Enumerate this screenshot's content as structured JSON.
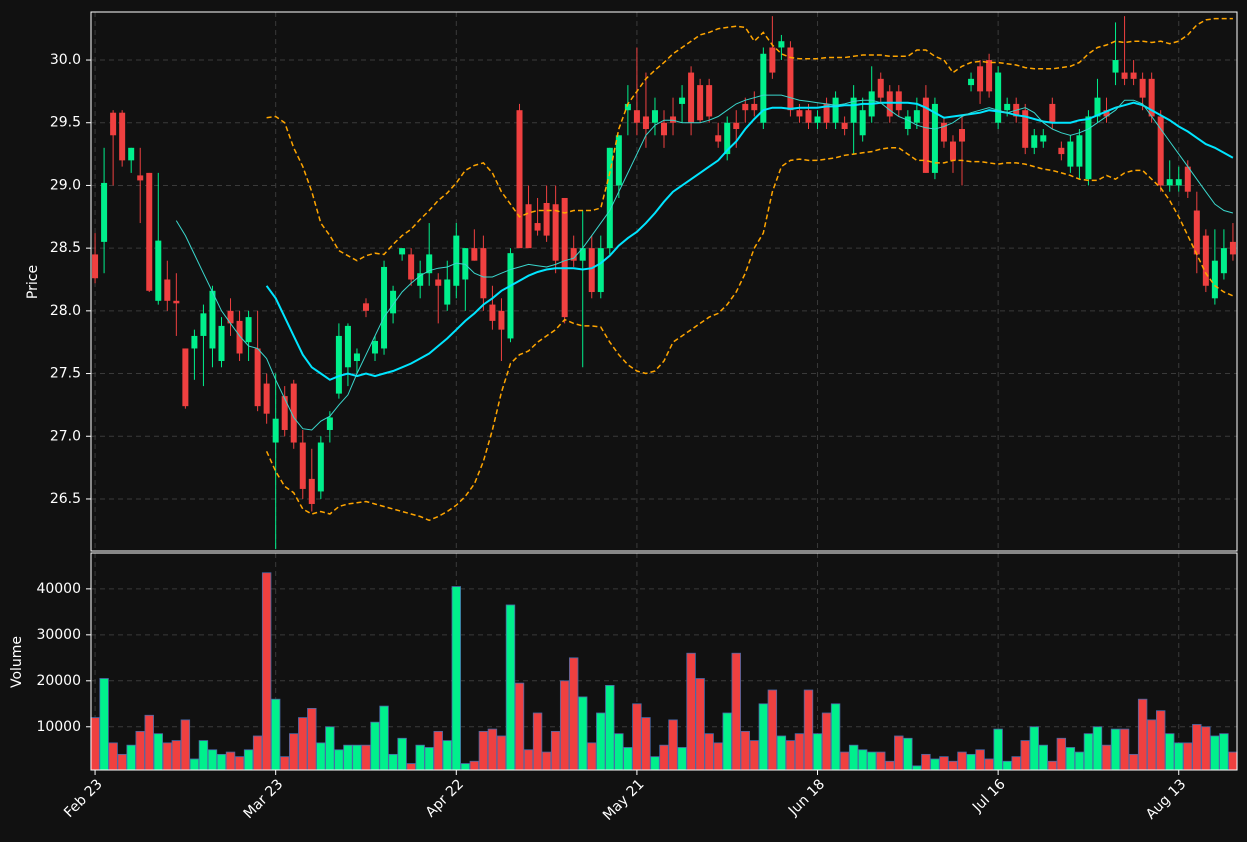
{
  "chart_data": {
    "type": "candlestick",
    "ylabel": "Price",
    "ylim": [
      26.085,
      30.383
    ],
    "yticks": [
      26.5,
      {
        "value": 27,
        "label": "27.0"
      },
      27.5,
      {
        "value": 28,
        "label": "28.0"
      },
      28.5,
      {
        "value": 29,
        "label": "29.0"
      },
      29.5,
      {
        "value": 30,
        "label": "30.0"
      }
    ],
    "grid": true,
    "up_color": "#00f08c",
    "down_color": "#ef4040",
    "categories": [
      "Feb 23",
      null,
      null,
      null,
      null,
      null,
      null,
      null,
      null,
      null,
      null,
      null,
      null,
      null,
      null,
      null,
      null,
      null,
      null,
      null,
      "Mar 23",
      null,
      null,
      null,
      null,
      null,
      null,
      null,
      null,
      null,
      null,
      null,
      null,
      null,
      null,
      null,
      null,
      null,
      null,
      null,
      "Apr 22",
      null,
      null,
      null,
      null,
      null,
      null,
      null,
      null,
      null,
      null,
      null,
      null,
      null,
      null,
      null,
      null,
      null,
      null,
      null,
      "May 21",
      null,
      null,
      null,
      null,
      null,
      null,
      null,
      null,
      null,
      null,
      null,
      null,
      null,
      null,
      null,
      null,
      null,
      null,
      null,
      "Jun 18",
      null,
      null,
      null,
      null,
      null,
      null,
      null,
      null,
      null,
      null,
      null,
      null,
      null,
      null,
      null,
      null,
      null,
      null,
      null,
      "Jul 16",
      null,
      null,
      null,
      null,
      null,
      null,
      null,
      null,
      null,
      null,
      null,
      null,
      null,
      null,
      null,
      null,
      null,
      null,
      null,
      "Aug 13",
      null,
      null,
      null,
      null,
      null,
      null
    ],
    "open": [
      28.45,
      28.55,
      29.58,
      29.58,
      29.2,
      29.08,
      29.1,
      28.08,
      28.25,
      28.08,
      27.7,
      27.7,
      27.8,
      27.7,
      27.6,
      28.0,
      27.92,
      27.75,
      27.7,
      27.42,
      26.95,
      27.32,
      27.42,
      26.95,
      26.66,
      26.56,
      27.05,
      27.34,
      27.55,
      27.6,
      28.06,
      27.66,
      27.7,
      27.98,
      28.45,
      28.45,
      28.2,
      28.3,
      28.25,
      28.05,
      28.2,
      28.25,
      28.5,
      28.5,
      28.05,
      28.0,
      27.78,
      29.6,
      28.85,
      28.7,
      28.86,
      28.85,
      28.9,
      28.5,
      28.4,
      28.5,
      28.15,
      28.5,
      29.0,
      29.6,
      29.6,
      29.55,
      29.5,
      29.5,
      29.55,
      29.65,
      29.9,
      29.8,
      29.8,
      29.4,
      29.25,
      29.5,
      29.65,
      29.65,
      29.5,
      30.1,
      30.1,
      30.1,
      29.6,
      29.6,
      29.5,
      29.65,
      29.5,
      29.5,
      29.5,
      29.4,
      29.55,
      29.85,
      29.75,
      29.75,
      29.45,
      29.5,
      29.7,
      29.1,
      29.5,
      29.35,
      29.45,
      29.8,
      29.95,
      30.0,
      29.5,
      29.6,
      29.65,
      29.6,
      29.3,
      29.35,
      29.65,
      29.3,
      29.15,
      29.15,
      29.05,
      29.55,
      29.6,
      29.9,
      29.9,
      29.9,
      29.85,
      29.85,
      29.55,
      29.0,
      29.0,
      29.15,
      28.8,
      28.6,
      28.1,
      28.3,
      28.55
    ],
    "high": [
      28.62,
      29.3,
      29.6,
      29.6,
      29.3,
      29.3,
      29.1,
      29.1,
      28.4,
      28.3,
      27.7,
      27.85,
      28.05,
      28.2,
      27.95,
      28.1,
      28.0,
      28.0,
      28.0,
      27.5,
      27.5,
      27.4,
      27.45,
      27.05,
      26.9,
      27.0,
      27.2,
      27.9,
      27.9,
      27.7,
      28.1,
      27.8,
      28.4,
      28.2,
      28.5,
      28.5,
      28.4,
      28.7,
      28.3,
      28.4,
      28.7,
      28.5,
      28.65,
      28.6,
      28.2,
      28.1,
      28.5,
      29.65,
      29.0,
      28.9,
      29.0,
      29.0,
      28.9,
      28.6,
      28.8,
      28.6,
      28.6,
      29.3,
      29.4,
      29.8,
      30.1,
      29.9,
      29.7,
      29.6,
      29.7,
      29.8,
      29.95,
      29.85,
      29.85,
      29.5,
      29.55,
      29.6,
      29.7,
      29.75,
      30.1,
      30.35,
      30.2,
      30.15,
      29.65,
      29.65,
      29.6,
      29.7,
      29.75,
      29.55,
      29.8,
      29.7,
      29.95,
      29.9,
      29.8,
      29.8,
      29.6,
      29.7,
      29.8,
      29.7,
      29.55,
      29.4,
      29.55,
      29.9,
      30.0,
      30.05,
      29.95,
      29.7,
      29.7,
      29.65,
      29.45,
      29.45,
      29.7,
      29.35,
      29.4,
      29.45,
      29.6,
      29.85,
      29.7,
      30.3,
      30.35,
      30.0,
      29.9,
      29.9,
      29.6,
      29.2,
      29.15,
      29.2,
      28.95,
      28.65,
      28.65,
      28.65,
      28.7
    ],
    "low": [
      28.22,
      28.3,
      29.0,
      29.15,
      29.1,
      28.7,
      28.15,
      28.05,
      28.0,
      27.8,
      27.22,
      27.45,
      27.4,
      27.55,
      27.55,
      27.8,
      27.6,
      27.6,
      27.2,
      27.1,
      26.1,
      27.0,
      26.9,
      26.5,
      26.4,
      26.5,
      26.95,
      27.3,
      27.4,
      27.5,
      27.95,
      27.6,
      27.65,
      27.9,
      28.4,
      28.2,
      28.1,
      28.2,
      27.9,
      28.0,
      28.1,
      28.0,
      28.4,
      28.0,
      27.85,
      27.6,
      27.75,
      28.5,
      28.5,
      28.6,
      28.55,
      28.3,
      27.9,
      28.35,
      27.55,
      28.1,
      28.1,
      28.45,
      28.9,
      29.4,
      29.4,
      29.3,
      29.4,
      29.3,
      29.4,
      29.5,
      29.4,
      29.5,
      29.5,
      29.3,
      29.2,
      29.3,
      29.5,
      29.55,
      29.45,
      29.85,
      30.0,
      29.55,
      29.5,
      29.45,
      29.45,
      29.45,
      29.45,
      29.4,
      29.25,
      29.35,
      29.5,
      29.65,
      29.5,
      29.55,
      29.4,
      29.45,
      29.1,
      29.05,
      29.3,
      29.1,
      29.0,
      29.75,
      29.65,
      29.7,
      29.45,
      29.55,
      29.5,
      29.25,
      29.25,
      29.3,
      29.45,
      29.2,
      29.1,
      29.05,
      29.0,
      29.5,
      29.5,
      29.8,
      29.8,
      29.8,
      29.6,
      29.5,
      28.95,
      28.95,
      28.95,
      28.9,
      28.3,
      28.15,
      28.05,
      28.25,
      28.4
    ],
    "close": [
      28.26,
      29.02,
      29.4,
      29.2,
      29.3,
      29.04,
      28.16,
      28.56,
      28.08,
      28.06,
      27.24,
      27.8,
      27.98,
      28.16,
      27.88,
      27.9,
      27.66,
      27.95,
      27.24,
      27.18,
      27.14,
      27.05,
      26.95,
      26.58,
      26.46,
      26.95,
      27.15,
      27.8,
      27.88,
      27.66,
      28.0,
      27.76,
      28.35,
      28.16,
      28.5,
      28.25,
      28.3,
      28.45,
      28.2,
      28.25,
      28.6,
      28.5,
      28.4,
      28.1,
      27.92,
      27.85,
      28.46,
      28.5,
      28.5,
      28.64,
      28.6,
      28.4,
      27.95,
      28.4,
      28.5,
      28.15,
      28.5,
      29.3,
      29.4,
      29.65,
      29.5,
      29.45,
      29.6,
      29.4,
      29.5,
      29.7,
      29.5,
      29.52,
      29.55,
      29.35,
      29.5,
      29.45,
      29.6,
      29.6,
      30.05,
      29.9,
      30.15,
      29.6,
      29.55,
      29.5,
      29.55,
      29.5,
      29.7,
      29.45,
      29.7,
      29.6,
      29.75,
      29.7,
      29.55,
      29.6,
      29.55,
      29.6,
      29.1,
      29.65,
      29.35,
      29.2,
      29.35,
      29.85,
      29.75,
      29.75,
      29.9,
      29.65,
      29.55,
      29.3,
      29.4,
      29.4,
      29.5,
      29.25,
      29.35,
      29.4,
      29.55,
      29.7,
      29.55,
      30.0,
      29.85,
      29.85,
      29.7,
      29.55,
      29.0,
      29.05,
      29.05,
      28.95,
      28.45,
      28.2,
      28.4,
      28.5,
      28.45
    ],
    "lines": [
      {
        "color": "#00e5ff",
        "width": 2,
        "dashed": false,
        "values": [
          null,
          null,
          null,
          null,
          null,
          null,
          null,
          null,
          null,
          null,
          null,
          null,
          null,
          null,
          null,
          null,
          null,
          null,
          null,
          28.2,
          28.1,
          27.95,
          27.8,
          27.65,
          27.55,
          27.5,
          27.45,
          27.48,
          27.5,
          27.48,
          27.5,
          27.48,
          27.5,
          27.52,
          27.55,
          27.58,
          27.62,
          27.66,
          27.72,
          27.78,
          27.85,
          27.92,
          27.98,
          28.05,
          28.1,
          28.16,
          28.2,
          28.24,
          28.28,
          28.31,
          28.33,
          28.34,
          28.34,
          28.34,
          28.33,
          28.34,
          28.38,
          28.44,
          28.52,
          28.58,
          28.63,
          28.7,
          28.78,
          28.87,
          28.95,
          29.0,
          29.05,
          29.1,
          29.15,
          29.2,
          29.28,
          29.35,
          29.45,
          29.53,
          29.6,
          29.62,
          29.62,
          29.61,
          29.62,
          29.62,
          29.62,
          29.63,
          29.63,
          29.64,
          29.64,
          29.65,
          29.65,
          29.66,
          29.66,
          29.66,
          29.66,
          29.65,
          29.62,
          29.58,
          29.54,
          29.55,
          29.56,
          29.57,
          29.58,
          29.6,
          29.59,
          29.58,
          29.56,
          29.55,
          29.53,
          29.51,
          29.5,
          29.5,
          29.5,
          29.52,
          29.53,
          29.56,
          29.59,
          29.62,
          29.64,
          29.66,
          29.64,
          29.6,
          29.56,
          29.52,
          29.47,
          29.43,
          29.38,
          29.33,
          29.3,
          29.26,
          29.22
        ]
      },
      {
        "color": "#3ad6cc",
        "width": 1,
        "dashed": false,
        "values": [
          null,
          null,
          null,
          null,
          null,
          null,
          null,
          null,
          null,
          28.72,
          28.6,
          28.45,
          28.3,
          28.15,
          28.0,
          27.9,
          27.8,
          27.72,
          27.7,
          27.62,
          27.45,
          27.3,
          27.15,
          27.06,
          27.05,
          27.12,
          27.16,
          27.25,
          27.33,
          27.5,
          27.65,
          27.8,
          27.95,
          28.05,
          28.15,
          28.22,
          28.28,
          28.32,
          28.34,
          28.35,
          28.38,
          28.37,
          28.3,
          28.27,
          28.27,
          28.3,
          28.33,
          28.35,
          28.37,
          28.36,
          28.35,
          28.37,
          28.4,
          28.42,
          28.5,
          28.6,
          28.7,
          28.8,
          28.95,
          29.1,
          29.25,
          29.4,
          29.48,
          29.52,
          29.52,
          29.5,
          29.5,
          29.5,
          29.52,
          29.55,
          29.6,
          29.65,
          29.68,
          29.7,
          29.72,
          29.72,
          29.72,
          29.7,
          29.68,
          29.67,
          29.66,
          29.65,
          29.64,
          29.65,
          29.67,
          29.68,
          29.68,
          29.66,
          29.6,
          29.55,
          29.52,
          29.48,
          29.46,
          29.45,
          29.47,
          29.5,
          29.55,
          29.58,
          29.6,
          29.62,
          29.6,
          29.58,
          29.6,
          29.62,
          29.58,
          29.5,
          29.45,
          29.42,
          29.4,
          29.42,
          29.45,
          29.5,
          29.55,
          29.6,
          29.68,
          29.68,
          29.65,
          29.55,
          29.45,
          29.35,
          29.25,
          29.15,
          29.05,
          28.95,
          28.85,
          28.8,
          28.78
        ]
      },
      {
        "color": "#ffa500",
        "width": 1.5,
        "dashed": true,
        "values": [
          null,
          null,
          null,
          null,
          null,
          null,
          null,
          null,
          null,
          null,
          null,
          null,
          null,
          null,
          null,
          null,
          null,
          null,
          null,
          29.54,
          29.55,
          29.5,
          29.3,
          29.15,
          28.95,
          28.7,
          28.6,
          28.48,
          28.44,
          28.4,
          28.44,
          28.46,
          28.45,
          28.53,
          28.6,
          28.65,
          28.73,
          28.8,
          28.88,
          28.94,
          29.02,
          29.12,
          29.16,
          29.18,
          29.1,
          28.95,
          28.85,
          28.75,
          28.78,
          28.8,
          28.8,
          28.8,
          28.78,
          28.8,
          28.8,
          28.8,
          28.82,
          29.1,
          29.45,
          29.65,
          29.75,
          29.85,
          29.92,
          29.98,
          30.05,
          30.1,
          30.15,
          30.2,
          30.22,
          30.25,
          30.26,
          30.27,
          30.26,
          30.15,
          30.22,
          30.12,
          30.05,
          30.02,
          30.01,
          30.01,
          30.01,
          30.02,
          30.02,
          30.02,
          30.03,
          30.04,
          30.04,
          30.04,
          30.03,
          30.03,
          30.03,
          30.08,
          30.08,
          30.03,
          30.0,
          29.9,
          29.95,
          29.98,
          29.99,
          29.98,
          29.98,
          29.97,
          29.96,
          29.94,
          29.93,
          29.93,
          29.93,
          29.94,
          29.95,
          29.98,
          30.05,
          30.1,
          30.12,
          30.15,
          30.14,
          30.15,
          30.15,
          30.14,
          30.15,
          30.13,
          30.15,
          30.2,
          30.28,
          30.32,
          30.33,
          30.33,
          30.33
        ]
      },
      {
        "color": "#ffa500",
        "width": 1.5,
        "dashed": true,
        "values": [
          null,
          null,
          null,
          null,
          null,
          null,
          null,
          null,
          null,
          null,
          null,
          null,
          null,
          null,
          null,
          null,
          null,
          null,
          null,
          26.88,
          26.72,
          26.6,
          26.55,
          26.42,
          26.38,
          26.4,
          26.38,
          26.44,
          26.46,
          26.47,
          26.48,
          26.46,
          26.44,
          26.42,
          26.4,
          26.38,
          26.36,
          26.33,
          26.36,
          26.4,
          26.45,
          26.52,
          26.62,
          26.8,
          27.05,
          27.35,
          27.58,
          27.65,
          27.68,
          27.75,
          27.8,
          27.85,
          27.93,
          27.9,
          27.88,
          27.88,
          27.87,
          27.75,
          27.65,
          27.57,
          27.52,
          27.5,
          27.52,
          27.6,
          27.75,
          27.8,
          27.85,
          27.9,
          27.95,
          27.98,
          28.05,
          28.15,
          28.3,
          28.5,
          28.62,
          28.95,
          29.15,
          29.2,
          29.21,
          29.2,
          29.2,
          29.21,
          29.22,
          29.24,
          29.25,
          29.26,
          29.27,
          29.29,
          29.3,
          29.3,
          29.25,
          29.2,
          29.2,
          29.18,
          29.18,
          29.2,
          29.2,
          29.19,
          29.19,
          29.18,
          29.17,
          29.18,
          29.18,
          29.17,
          29.15,
          29.13,
          29.12,
          29.1,
          29.08,
          29.05,
          29.04,
          29.04,
          29.08,
          29.05,
          29.1,
          29.12,
          29.12,
          29.05,
          28.98,
          28.88,
          28.75,
          28.6,
          28.45,
          28.3,
          28.2,
          28.15,
          28.12
        ]
      }
    ],
    "volume": {
      "ylabel": "Volume",
      "ylim": [
        600,
        47800
      ],
      "yticks": [
        10000,
        20000,
        30000,
        40000
      ],
      "values": [
        12000,
        20500,
        6500,
        4000,
        6000,
        9000,
        12500,
        8500,
        6500,
        7000,
        11500,
        3000,
        7000,
        5000,
        4000,
        4500,
        3500,
        5000,
        8000,
        43500,
        16000,
        3500,
        8500,
        12000,
        14000,
        6500,
        10000,
        5000,
        6000,
        6000,
        6000,
        11000,
        14500,
        4000,
        7500,
        2000,
        6000,
        5500,
        9000,
        7000,
        40500,
        2000,
        2500,
        9000,
        9500,
        8000,
        36500,
        19500,
        5000,
        13000,
        4500,
        9000,
        20000,
        25000,
        16500,
        6500,
        13000,
        19000,
        8500,
        5500,
        15000,
        12000,
        3500,
        6000,
        11500,
        5500,
        26000,
        20500,
        8500,
        6500,
        13000,
        26000,
        9000,
        7000,
        15000,
        18000,
        8000,
        7000,
        8500,
        18000,
        8500,
        13000,
        15000,
        4500,
        6000,
        5000,
        4500,
        4500,
        2500,
        8000,
        7500,
        1500,
        4000,
        3000,
        3500,
        2500,
        4500,
        4000,
        5000,
        3000,
        9500,
        2500,
        3500,
        7000,
        10000,
        6000,
        2500,
        7500,
        5500,
        4500,
        8500,
        10000,
        6000,
        9500,
        9500,
        4000,
        16000,
        11500,
        13500,
        8500,
        6500,
        6500,
        10500,
        10000,
        8000,
        8500,
        4500
      ]
    }
  }
}
